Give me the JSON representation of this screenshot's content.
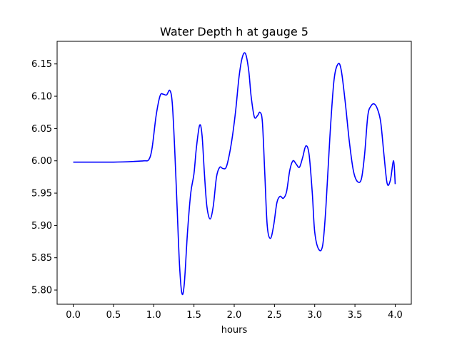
{
  "chart_data": {
    "type": "line",
    "title": "Water Depth h at gauge 5",
    "xlabel": "hours",
    "ylabel": "",
    "xlim": [
      -0.2,
      4.2
    ],
    "ylim": [
      5.778,
      6.185
    ],
    "xticks": [
      "0.0",
      "0.5",
      "1.0",
      "1.5",
      "2.0",
      "2.5",
      "3.0",
      "3.5",
      "4.0"
    ],
    "yticks": [
      "5.80",
      "5.85",
      "5.90",
      "5.95",
      "6.00",
      "6.05",
      "6.10",
      "6.15"
    ],
    "grid": false,
    "legend": "none",
    "series": [
      {
        "color": "#0000ff",
        "x": [
          0.0,
          0.25,
          0.5,
          0.75,
          0.88,
          0.94,
          0.98,
          1.03,
          1.08,
          1.12,
          1.16,
          1.2,
          1.23,
          1.26,
          1.29,
          1.32,
          1.35,
          1.38,
          1.42,
          1.46,
          1.5,
          1.53,
          1.57,
          1.6,
          1.63,
          1.66,
          1.7,
          1.74,
          1.78,
          1.82,
          1.86,
          1.9,
          1.94,
          1.98,
          2.02,
          2.06,
          2.1,
          2.14,
          2.18,
          2.21,
          2.25,
          2.29,
          2.32,
          2.35,
          2.38,
          2.41,
          2.45,
          2.49,
          2.53,
          2.57,
          2.61,
          2.65,
          2.69,
          2.73,
          2.77,
          2.81,
          2.85,
          2.89,
          2.93,
          2.97,
          3.0,
          3.05,
          3.1,
          3.14,
          3.19,
          3.24,
          3.29,
          3.33,
          3.38,
          3.43,
          3.48,
          3.53,
          3.58,
          3.62,
          3.66,
          3.7,
          3.74,
          3.78,
          3.82,
          3.86,
          3.9,
          3.94,
          3.98,
          4.0
        ],
        "y": [
          5.998,
          5.998,
          5.998,
          5.999,
          6.0,
          6.002,
          6.02,
          6.07,
          6.101,
          6.103,
          6.102,
          6.109,
          6.09,
          6.02,
          5.93,
          5.84,
          5.795,
          5.81,
          5.89,
          5.95,
          5.98,
          6.02,
          6.055,
          6.04,
          5.98,
          5.93,
          5.91,
          5.93,
          5.975,
          5.99,
          5.988,
          5.99,
          6.01,
          6.04,
          6.08,
          6.13,
          6.16,
          6.166,
          6.14,
          6.1,
          6.068,
          6.07,
          6.075,
          6.06,
          5.98,
          5.9,
          5.88,
          5.9,
          5.935,
          5.945,
          5.942,
          5.952,
          5.985,
          6.0,
          5.995,
          5.99,
          6.005,
          6.023,
          6.01,
          5.95,
          5.89,
          5.863,
          5.87,
          5.93,
          6.04,
          6.125,
          6.15,
          6.14,
          6.09,
          6.03,
          5.985,
          5.968,
          5.972,
          6.01,
          6.07,
          6.085,
          6.088,
          6.08,
          6.06,
          6.01,
          5.965,
          5.97,
          6.0,
          5.964
        ]
      }
    ]
  }
}
